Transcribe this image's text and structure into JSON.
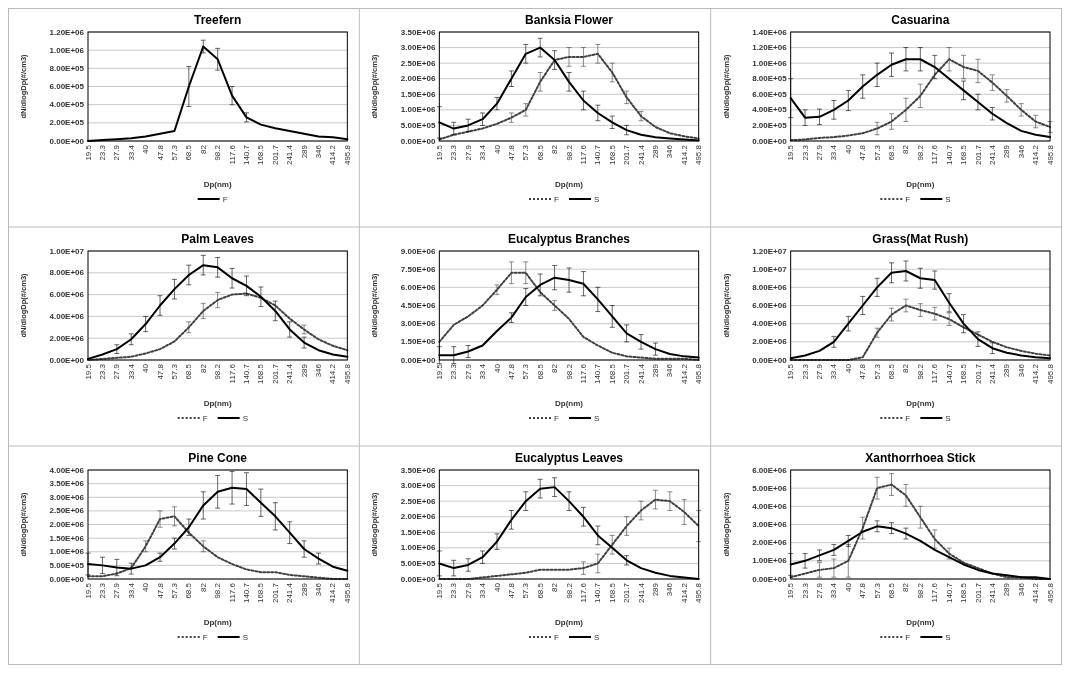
{
  "chart_data": [
    {
      "type": "line",
      "title": "Treefern",
      "xlabel": "Dp(nm)",
      "ylabel": "dN/dlogDp(#/cm3)",
      "grid": "y",
      "legend": "bottom",
      "categories": [
        "19.5",
        "23.3",
        "27.9",
        "33.4",
        "40",
        "47.8",
        "57.3",
        "68.5",
        "82",
        "98.2",
        "117.6",
        "140.7",
        "168.5",
        "201.7",
        "241.4",
        "289",
        "346",
        "414.2",
        "495.8"
      ],
      "ylim": [
        0,
        1200000.0
      ],
      "yticks": [
        {
          "value": 0,
          "label": "0.00E+00"
        },
        {
          "value": 200000.0,
          "label": "2.00E+05"
        },
        {
          "value": 400000.0,
          "label": "4.00E+05"
        },
        {
          "value": 600000.0,
          "label": "6.00E+05"
        },
        {
          "value": 800000.0,
          "label": "8.00E+05"
        },
        {
          "value": 1000000.0,
          "label": "1.00E+06"
        },
        {
          "value": 1200000.0,
          "label": "1.20E+06"
        }
      ],
      "series": [
        {
          "name": "F",
          "color": "#000000",
          "line_style": "solid",
          "values": [
            0,
            10000.0,
            20000.0,
            30000.0,
            50000.0,
            80000.0,
            110000.0,
            600000.0,
            1040000.0,
            900000.0,
            500000.0,
            260000.0,
            180000.0,
            140000.0,
            110000.0,
            80000.0,
            50000.0,
            40000.0,
            20000.0
          ],
          "errors": [
            null,
            null,
            null,
            null,
            null,
            null,
            null,
            220000.0,
            70000.0,
            120000.0,
            100000.0,
            50000.0,
            null,
            null,
            null,
            null,
            null,
            null,
            null
          ]
        }
      ]
    },
    {
      "type": "line",
      "title": "Banksia Flower",
      "xlabel": "Dp(nm)",
      "ylabel": "dN/dlogDp(#/cm3)",
      "grid": "y",
      "legend": "bottom",
      "categories": [
        "19.5",
        "23.3",
        "27.9",
        "33.4",
        "40",
        "47.8",
        "57.3",
        "68.5",
        "82",
        "98.2",
        "117.6",
        "140.7",
        "168.5",
        "201.7",
        "241.4",
        "289",
        "346",
        "414.2",
        "495.8"
      ],
      "ylim": [
        0,
        3500000.0
      ],
      "yticks": [
        {
          "value": 0,
          "label": "0.00E+00"
        },
        {
          "value": 500000.0,
          "label": "5.00E+05"
        },
        {
          "value": 1000000.0,
          "label": "1.00E+06"
        },
        {
          "value": 1500000.0,
          "label": "1.50E+06"
        },
        {
          "value": 2000000.0,
          "label": "2.00E+06"
        },
        {
          "value": 2500000.0,
          "label": "2.50E+06"
        },
        {
          "value": 3000000.0,
          "label": "3.00E+06"
        },
        {
          "value": 3500000.0,
          "label": "3.50E+06"
        }
      ],
      "series": [
        {
          "name": "F",
          "color": "#404040",
          "line_style": "dotted",
          "values": [
            50000.0,
            200000.0,
            300000.0,
            400000.0,
            550000.0,
            750000.0,
            1000000.0,
            1900000.0,
            2600000.0,
            2700000.0,
            2700000.0,
            2800000.0,
            2200000.0,
            1400000.0,
            800000.0,
            450000.0,
            250000.0,
            150000.0,
            80000.0
          ],
          "errors": [
            null,
            null,
            null,
            null,
            null,
            150000.0,
            200000.0,
            300000.0,
            null,
            300000.0,
            300000.0,
            300000.0,
            300000.0,
            200000.0,
            150000.0,
            null,
            null,
            null,
            null
          ]
        },
        {
          "name": "S",
          "color": "#000000",
          "line_style": "solid",
          "values": [
            600000.0,
            400000.0,
            500000.0,
            700000.0,
            1200000.0,
            2000000.0,
            2800000.0,
            3000000.0,
            2600000.0,
            1900000.0,
            1300000.0,
            900000.0,
            600000.0,
            350000.0,
            200000.0,
            120000.0,
            80000.0,
            50000.0,
            20000.0
          ],
          "errors": [
            500000.0,
            200000.0,
            200000.0,
            200000.0,
            200000.0,
            250000.0,
            300000.0,
            300000.0,
            300000.0,
            300000.0,
            300000.0,
            250000.0,
            200000.0,
            150000.0,
            null,
            null,
            null,
            null,
            null
          ]
        }
      ]
    },
    {
      "type": "line",
      "title": "Casuarina",
      "xlabel": "Dp(nm)",
      "ylabel": "dN/dlogDp(#/cm3)",
      "grid": "y",
      "legend": "bottom",
      "categories": [
        "19.5",
        "23.3",
        "27.9",
        "33.4",
        "40",
        "47.8",
        "57.3",
        "68.5",
        "82",
        "98.2",
        "117.6",
        "140.7",
        "168.5",
        "201.7",
        "241.4",
        "289",
        "346",
        "414.2",
        "495.8"
      ],
      "ylim": [
        0,
        1400000.0
      ],
      "yticks": [
        {
          "value": 0,
          "label": "0.00E+00"
        },
        {
          "value": 200000.0,
          "label": "2.00E+05"
        },
        {
          "value": 400000.0,
          "label": "4.00E+05"
        },
        {
          "value": 600000.0,
          "label": "6.00E+05"
        },
        {
          "value": 800000.0,
          "label": "8.00E+05"
        },
        {
          "value": 1000000.0,
          "label": "1.00E+06"
        },
        {
          "value": 1200000.0,
          "label": "1.20E+06"
        },
        {
          "value": 1400000.0,
          "label": "1.40E+06"
        }
      ],
      "series": [
        {
          "name": "F",
          "color": "#404040",
          "line_style": "dotted",
          "values": [
            10000.0,
            20000.0,
            40000.0,
            50000.0,
            70000.0,
            100000.0,
            160000.0,
            250000.0,
            400000.0,
            580000.0,
            850000.0,
            1050000.0,
            950000.0,
            900000.0,
            750000.0,
            580000.0,
            400000.0,
            250000.0,
            180000.0
          ],
          "errors": [
            null,
            null,
            null,
            null,
            null,
            null,
            80000.0,
            100000.0,
            150000.0,
            150000.0,
            null,
            150000.0,
            150000.0,
            150000.0,
            100000.0,
            80000.0,
            80000.0,
            80000.0,
            70000.0
          ]
        },
        {
          "name": "S",
          "color": "#000000",
          "line_style": "solid",
          "values": [
            550000.0,
            300000.0,
            310000.0,
            400000.0,
            520000.0,
            700000.0,
            850000.0,
            980000.0,
            1050000.0,
            1050000.0,
            950000.0,
            800000.0,
            650000.0,
            500000.0,
            350000.0,
            230000.0,
            130000.0,
            80000.0,
            50000.0
          ],
          "errors": [
            250000.0,
            100000.0,
            100000.0,
            120000.0,
            130000.0,
            150000.0,
            150000.0,
            150000.0,
            150000.0,
            150000.0,
            150000.0,
            null,
            120000.0,
            100000.0,
            80000.0,
            null,
            null,
            null,
            null
          ]
        }
      ]
    },
    {
      "type": "line",
      "title": "Palm Leaves",
      "xlabel": "Dp(nm)",
      "ylabel": "dN/dlogDp(#/cm3)",
      "grid": "y",
      "legend": "bottom",
      "categories": [
        "19.5",
        "23.3",
        "27.9",
        "33.4",
        "40",
        "47.8",
        "57.3",
        "68.5",
        "82",
        "98.2",
        "117.6",
        "140.7",
        "168.5",
        "201.7",
        "241.4",
        "289",
        "346",
        "414.2",
        "495.8"
      ],
      "ylim": [
        0,
        10000000.0
      ],
      "yticks": [
        {
          "value": 0,
          "label": "0.00E+00"
        },
        {
          "value": 2000000.0,
          "label": "2.00E+06"
        },
        {
          "value": 4000000.0,
          "label": "4.00E+06"
        },
        {
          "value": 6000000.0,
          "label": "6.00E+06"
        },
        {
          "value": 8000000.0,
          "label": "8.00E+06"
        },
        {
          "value": 10000000.0,
          "label": "1.00E+07"
        }
      ],
      "series": [
        {
          "name": "F",
          "color": "#404040",
          "line_style": "dotted",
          "values": [
            0,
            100000.0,
            200000.0,
            300000.0,
            600000.0,
            1000000.0,
            1700000.0,
            3000000.0,
            4500000.0,
            5500000.0,
            6000000.0,
            6100000.0,
            5700000.0,
            5000000.0,
            3800000.0,
            2800000.0,
            1900000.0,
            1300000.0,
            900000.0
          ],
          "errors": [
            null,
            null,
            null,
            null,
            null,
            null,
            null,
            500000.0,
            700000.0,
            700000.0,
            null,
            null,
            null,
            null,
            null,
            400000.0,
            null,
            null,
            null
          ]
        },
        {
          "name": "S",
          "color": "#000000",
          "line_style": "solid",
          "values": [
            100000.0,
            500000.0,
            1000000.0,
            1900000.0,
            3300000.0,
            5000000.0,
            6500000.0,
            7800000.0,
            8700000.0,
            8500000.0,
            7500000.0,
            6800000.0,
            5800000.0,
            4500000.0,
            2800000.0,
            1600000.0,
            900000.0,
            500000.0,
            300000.0
          ],
          "errors": [
            null,
            null,
            400000.0,
            500000.0,
            700000.0,
            900000.0,
            900000.0,
            900000.0,
            900000.0,
            900000.0,
            900000.0,
            900000.0,
            900000.0,
            900000.0,
            700000.0,
            500000.0,
            null,
            null,
            null
          ]
        }
      ]
    },
    {
      "type": "line",
      "title": "Eucalyptus Branches",
      "xlabel": "Dp(nm)",
      "ylabel": "dN/dlogDp(#/cm3)",
      "grid": "y",
      "legend": "bottom",
      "categories": [
        "19.5",
        "23.3",
        "27.9",
        "33.4",
        "40",
        "47.8",
        "57.3",
        "68.5",
        "82",
        "98.2",
        "117.6",
        "140.7",
        "168.5",
        "201.7",
        "241.4",
        "289",
        "346",
        "414.2",
        "495.8"
      ],
      "ylim": [
        0,
        9000000.0
      ],
      "yticks": [
        {
          "value": 0,
          "label": "0.00E+00"
        },
        {
          "value": 1500000.0,
          "label": "1.50E+06"
        },
        {
          "value": 3000000.0,
          "label": "3.00E+06"
        },
        {
          "value": 4500000.0,
          "label": "4.50E+06"
        },
        {
          "value": 6000000.0,
          "label": "6.00E+06"
        },
        {
          "value": 7500000.0,
          "label": "7.50E+06"
        },
        {
          "value": 9000000.0,
          "label": "9.00E+06"
        }
      ],
      "series": [
        {
          "name": "F",
          "color": "#404040",
          "line_style": "dotted",
          "values": [
            1500000.0,
            2900000.0,
            3600000.0,
            4500000.0,
            5800000.0,
            7200000.0,
            7200000.0,
            5600000.0,
            4500000.0,
            3400000.0,
            1900000.0,
            1200000.0,
            600000.0,
            300000.0,
            200000.0,
            100000.0,
            100000.0,
            100000.0,
            0
          ],
          "errors": [
            null,
            null,
            null,
            null,
            400000.0,
            900000.0,
            900000.0,
            null,
            400000.0,
            null,
            null,
            null,
            null,
            null,
            null,
            null,
            null,
            null,
            null
          ]
        },
        {
          "name": "S",
          "color": "#000000",
          "line_style": "solid",
          "values": [
            400000.0,
            400000.0,
            700000.0,
            1200000.0,
            2400000.0,
            3500000.0,
            5200000.0,
            6200000.0,
            6800000.0,
            6600000.0,
            6300000.0,
            5000000.0,
            3600000.0,
            2200000.0,
            1500000.0,
            900000.0,
            500000.0,
            300000.0,
            200000.0
          ],
          "errors": [
            700000.0,
            700000.0,
            500000.0,
            null,
            null,
            400000.0,
            700000.0,
            900000.0,
            1000000.0,
            1000000.0,
            1000000.0,
            1000000.0,
            900000.0,
            700000.0,
            600000.0,
            500000.0,
            null,
            null,
            null
          ]
        }
      ]
    },
    {
      "type": "line",
      "title": "Grass(Mat Rush)",
      "xlabel": "Dp(nm)",
      "ylabel": "dN/dlogDp(#/cm3)",
      "grid": "y",
      "legend": "bottom",
      "categories": [
        "19.5",
        "23.3",
        "27.9",
        "33.4",
        "40",
        "47.8",
        "57.3",
        "68.5",
        "82",
        "98.2",
        "117.6",
        "140.7",
        "168.5",
        "201.7",
        "241.4",
        "289",
        "346",
        "414.2",
        "495.8"
      ],
      "ylim": [
        0,
        12000000.0
      ],
      "yticks": [
        {
          "value": 0,
          "label": "0.00E+00"
        },
        {
          "value": 2000000.0,
          "label": "2.00E+06"
        },
        {
          "value": 4000000.0,
          "label": "4.00E+06"
        },
        {
          "value": 6000000.0,
          "label": "6.00E+06"
        },
        {
          "value": 8000000.0,
          "label": "8.00E+06"
        },
        {
          "value": 10000000.0,
          "label": "1.00E+07"
        },
        {
          "value": 12000000.0,
          "label": "1.20E+07"
        }
      ],
      "series": [
        {
          "name": "F",
          "color": "#404040",
          "line_style": "dotted",
          "values": [
            0,
            0,
            0,
            0,
            0,
            300000.0,
            3000000.0,
            5000000.0,
            6000000.0,
            5500000.0,
            5100000.0,
            4500000.0,
            3600000.0,
            2800000.0,
            2000000.0,
            1400000.0,
            1000000.0,
            700000.0,
            500000.0
          ],
          "errors": [
            null,
            null,
            null,
            null,
            null,
            null,
            500000.0,
            700000.0,
            700000.0,
            700000.0,
            700000.0,
            700000.0,
            null,
            null,
            null,
            null,
            null,
            null,
            null
          ]
        },
        {
          "name": "S",
          "color": "#000000",
          "line_style": "solid",
          "values": [
            200000.0,
            500000.0,
            1000000.0,
            2000000.0,
            4000000.0,
            6000000.0,
            8000000.0,
            9600000.0,
            9800000.0,
            9000000.0,
            8800000.0,
            6300000.0,
            4000000.0,
            2300000.0,
            1300000.0,
            800000.0,
            500000.0,
            300000.0,
            200000.0
          ],
          "errors": [
            null,
            null,
            null,
            600000.0,
            800000.0,
            1000000.0,
            1000000.0,
            1100000.0,
            1100000.0,
            1100000.0,
            1000000.0,
            1000000.0,
            1000000.0,
            800000.0,
            600000.0,
            null,
            null,
            null,
            null
          ]
        }
      ]
    },
    {
      "type": "line",
      "title": "Pine Cone",
      "xlabel": "Dp(nm)",
      "ylabel": "dN/dlogDp(#/cm3)",
      "grid": "y",
      "legend": "bottom",
      "categories": [
        "19.5",
        "23.3",
        "27.9",
        "33.4",
        "40",
        "47.8",
        "57.3",
        "68.5",
        "82",
        "98.2",
        "117.6",
        "140.7",
        "168.5",
        "201.7",
        "241.4",
        "289",
        "346",
        "414.2",
        "495.8"
      ],
      "ylim": [
        0,
        4000000.0
      ],
      "yticks": [
        {
          "value": 0,
          "label": "0.00E+00"
        },
        {
          "value": 500000.0,
          "label": "5.00E+05"
        },
        {
          "value": 1000000.0,
          "label": "1.00E+06"
        },
        {
          "value": 1500000.0,
          "label": "1.50E+06"
        },
        {
          "value": 2000000.0,
          "label": "2.00E+06"
        },
        {
          "value": 2500000.0,
          "label": "2.50E+06"
        },
        {
          "value": 3000000.0,
          "label": "3.00E+06"
        },
        {
          "value": 3500000.0,
          "label": "3.50E+06"
        },
        {
          "value": 4000000.0,
          "label": "4.00E+06"
        }
      ],
      "series": [
        {
          "name": "F",
          "color": "#404040",
          "line_style": "dotted",
          "values": [
            100000.0,
            100000.0,
            200000.0,
            400000.0,
            1200000.0,
            2200000.0,
            2300000.0,
            1700000.0,
            1200000.0,
            800000.0,
            550000.0,
            350000.0,
            250000.0,
            250000.0,
            150000.0,
            100000.0,
            50000.0,
            0,
            0
          ],
          "errors": [
            null,
            null,
            null,
            null,
            200000.0,
            300000.0,
            350000.0,
            null,
            200000.0,
            null,
            null,
            null,
            null,
            null,
            null,
            null,
            null,
            null,
            null
          ]
        },
        {
          "name": "S",
          "color": "#000000",
          "line_style": "solid",
          "values": [
            550000.0,
            500000.0,
            420000.0,
            380000.0,
            500000.0,
            800000.0,
            1300000.0,
            1900000.0,
            2700000.0,
            3200000.0,
            3350000.0,
            3300000.0,
            2800000.0,
            2300000.0,
            1700000.0,
            1100000.0,
            750000.0,
            450000.0,
            300000.0
          ],
          "errors": [
            400000.0,
            300000.0,
            300000.0,
            200000.0,
            null,
            150000.0,
            200000.0,
            300000.0,
            500000.0,
            600000.0,
            600000.0,
            600000.0,
            500000.0,
            500000.0,
            400000.0,
            300000.0,
            200000.0,
            null,
            null
          ]
        }
      ]
    },
    {
      "type": "line",
      "title": "Eucalyptus Leaves",
      "xlabel": "Dp(nm)",
      "ylabel": "dN/dlogDp(#/cm3)",
      "grid": "y",
      "legend": "bottom",
      "categories": [
        "19.5",
        "23.3",
        "27.9",
        "33.4",
        "40",
        "47.8",
        "57.3",
        "68.5",
        "82",
        "98.2",
        "117.6",
        "140.7",
        "168.5",
        "201.7",
        "241.4",
        "289",
        "346",
        "414.2",
        "495.8"
      ],
      "ylim": [
        0,
        3500000.0
      ],
      "yticks": [
        {
          "value": 0,
          "label": "0.00E+00"
        },
        {
          "value": 500000.0,
          "label": "5.00E+05"
        },
        {
          "value": 1000000.0,
          "label": "1.00E+06"
        },
        {
          "value": 1500000.0,
          "label": "1.50E+06"
        },
        {
          "value": 2000000.0,
          "label": "2.00E+06"
        },
        {
          "value": 2500000.0,
          "label": "2.50E+06"
        },
        {
          "value": 3000000.0,
          "label": "3.00E+06"
        },
        {
          "value": 3500000.0,
          "label": "3.50E+06"
        }
      ],
      "series": [
        {
          "name": "F",
          "color": "#404040",
          "line_style": "dotted",
          "values": [
            0,
            0,
            0,
            50000.0,
            100000.0,
            150000.0,
            200000.0,
            300000.0,
            300000.0,
            300000.0,
            350000.0,
            500000.0,
            1100000.0,
            1700000.0,
            2200000.0,
            2550000.0,
            2500000.0,
            2150000.0,
            1700000.0
          ],
          "errors": [
            null,
            null,
            null,
            null,
            null,
            null,
            null,
            null,
            null,
            null,
            200000.0,
            300000.0,
            300000.0,
            300000.0,
            300000.0,
            300000.0,
            300000.0,
            400000.0,
            500000.0
          ]
        },
        {
          "name": "S",
          "color": "#000000",
          "line_style": "solid",
          "values": [
            500000.0,
            350000.0,
            450000.0,
            700000.0,
            1200000.0,
            1900000.0,
            2500000.0,
            2900000.0,
            2950000.0,
            2500000.0,
            2000000.0,
            1400000.0,
            1000000.0,
            600000.0,
            350000.0,
            200000.0,
            100000.0,
            50000.0,
            0
          ],
          "errors": [
            400000.0,
            250000.0,
            200000.0,
            200000.0,
            250000.0,
            300000.0,
            300000.0,
            300000.0,
            300000.0,
            300000.0,
            300000.0,
            300000.0,
            null,
            150000.0,
            null,
            null,
            null,
            null,
            null
          ]
        }
      ]
    },
    {
      "type": "line",
      "title": "Xanthorrhoea Stick",
      "xlabel": "Dp(nm)",
      "ylabel": "dN/dlogDp(#/cm3)",
      "grid": "y",
      "legend": "bottom",
      "categories": [
        "19.5",
        "23.3",
        "27.9",
        "33.4",
        "40",
        "47.8",
        "57.3",
        "68.5",
        "82",
        "98.2",
        "117.6",
        "140.7",
        "168.5",
        "201.7",
        "241.4",
        "289",
        "346",
        "414.2",
        "495.8"
      ],
      "ylim": [
        0,
        6000000.0
      ],
      "yticks": [
        {
          "value": 0,
          "label": "0.00E+00"
        },
        {
          "value": 1000000.0,
          "label": "1.00E+06"
        },
        {
          "value": 2000000.0,
          "label": "2.00E+06"
        },
        {
          "value": 3000000.0,
          "label": "3.00E+06"
        },
        {
          "value": 4000000.0,
          "label": "4.00E+06"
        },
        {
          "value": 5000000.0,
          "label": "5.00E+06"
        },
        {
          "value": 6000000.0,
          "label": "6.00E+06"
        }
      ],
      "series": [
        {
          "name": "F",
          "color": "#404040",
          "line_style": "dotted",
          "values": [
            100000.0,
            300000.0,
            500000.0,
            600000.0,
            1000000.0,
            2800000.0,
            5000000.0,
            5200000.0,
            4600000.0,
            3400000.0,
            2200000.0,
            1400000.0,
            900000.0,
            600000.0,
            300000.0,
            100000.0,
            100000.0,
            0,
            0
          ],
          "errors": [
            null,
            null,
            400000.0,
            500000.0,
            900000.0,
            600000.0,
            600000.0,
            600000.0,
            600000.0,
            600000.0,
            500000.0,
            300000.0,
            null,
            null,
            null,
            null,
            null,
            null,
            null
          ]
        },
        {
          "name": "S",
          "color": "#000000",
          "line_style": "solid",
          "values": [
            800000.0,
            1000000.0,
            1300000.0,
            1600000.0,
            2100000.0,
            2600000.0,
            2900000.0,
            2800000.0,
            2500000.0,
            2100000.0,
            1600000.0,
            1200000.0,
            800000.0,
            500000.0,
            300000.0,
            200000.0,
            100000.0,
            100000.0,
            0
          ],
          "errors": [
            600000.0,
            400000.0,
            300000.0,
            300000.0,
            300000.0,
            null,
            300000.0,
            300000.0,
            300000.0,
            null,
            null,
            null,
            null,
            null,
            null,
            null,
            null,
            null,
            null
          ]
        }
      ]
    }
  ]
}
